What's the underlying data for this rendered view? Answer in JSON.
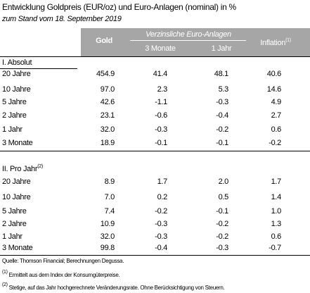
{
  "header": {
    "title": "Entwicklung Goldpreis (EUR/oz) und Euro-Anlagen (nominal) in %",
    "subtitle": "zum Stand vom 18. September 2019"
  },
  "table": {
    "columns": {
      "gold": "Gold",
      "group": "Verzinsliche Euro-Anlagen",
      "sub": [
        "3 Monate",
        "1 Jahr"
      ],
      "inflation": "Inflation",
      "inflation_note": "(1)"
    },
    "sections": [
      {
        "title": "I. Absolut",
        "rows": [
          [
            "20 Jahre",
            "454.9",
            "41.4",
            "48.1",
            "40.6"
          ],
          [
            "10 Jahre",
            "97.0",
            "2.3",
            "5.3",
            "14.6"
          ],
          [
            "5 Jahre",
            "42.6",
            "-1.1",
            "-0.3",
            "4.9"
          ],
          [
            "2 Jahre",
            "23.1",
            "-0.6",
            "-0.4",
            "2.7"
          ],
          [
            "1 Jahr",
            "32.0",
            "-0.3",
            "-0.2",
            "0.6"
          ],
          [
            "3 Monate",
            "18.9",
            "-0.1",
            "-0.1",
            "-0.2"
          ]
        ]
      },
      {
        "title": "II. Pro Jahr",
        "note": "(2)",
        "rows": [
          [
            "20 Jahre",
            "8.9",
            "1.7",
            "2.0",
            "1.7"
          ],
          [
            "10 Jahre",
            "7.0",
            "0.2",
            "0.5",
            "1.4"
          ],
          [
            "5 Jahre",
            "7.4",
            "-0.2",
            "-0.1",
            "1.0"
          ],
          [
            "2 Jahre",
            "10.9",
            "-0.3",
            "-0.2",
            "1.3"
          ],
          [
            "1 Jahr",
            "32.0",
            "-0.3",
            "-0.2",
            "0.6"
          ],
          [
            "3 Monate",
            "99.8",
            "-0.4",
            "-0.3",
            "-0.7"
          ]
        ]
      }
    ]
  },
  "footer": {
    "source": "Quelle: Thomson Financial; Berechnungen Degussa.",
    "notes": [
      {
        "mark": "(1)",
        "text": "Ermittelt aus dem Index der Konsumgüterpreise."
      },
      {
        "mark": "(2)",
        "text": "Stetige, auf das Jahr hochgerechnete Veränderungsrate. Ohne Berücksichtigung von Steuern."
      }
    ]
  }
}
